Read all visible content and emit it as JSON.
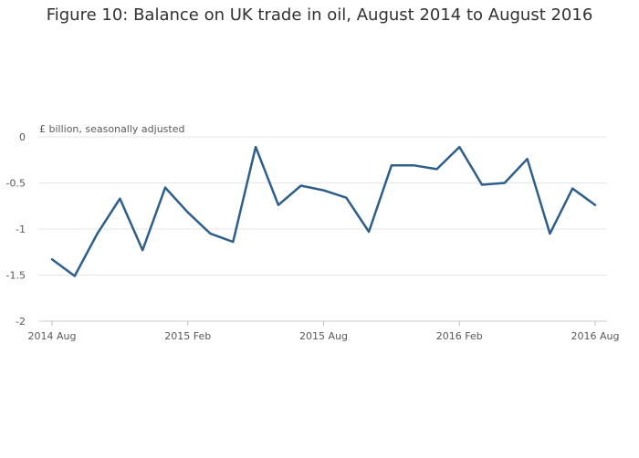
{
  "chart_data": {
    "type": "line",
    "title": "Figure 10: Balance on UK trade in oil, August 2014 to August 2016",
    "ylabel": "£ billion, seasonally adjusted",
    "xlabel": "",
    "ylim": [
      -2,
      0
    ],
    "yticks": [
      "0",
      "-0.5",
      "-1",
      "-1.5",
      "-2"
    ],
    "ytick_values": [
      0,
      -0.5,
      -1,
      -1.5,
      -2
    ],
    "xtick_labels": [
      "2014 Aug",
      "2015 Feb",
      "2015 Aug",
      "2016 Feb",
      "2016 Aug"
    ],
    "xtick_index": [
      0,
      6,
      12,
      18,
      24
    ],
    "grid": true,
    "line_color": "#2e5f8b",
    "x": [
      "2014 Aug",
      "2014 Sep",
      "2014 Oct",
      "2014 Nov",
      "2014 Dec",
      "2015 Jan",
      "2015 Feb",
      "2015 Mar",
      "2015 Apr",
      "2015 May",
      "2015 Jun",
      "2015 Jul",
      "2015 Aug",
      "2015 Sep",
      "2015 Oct",
      "2015 Nov",
      "2015 Dec",
      "2016 Jan",
      "2016 Feb",
      "2016 Mar",
      "2016 Apr",
      "2016 May",
      "2016 Jun",
      "2016 Jul",
      "2016 Aug"
    ],
    "values": [
      -1.33,
      -1.51,
      -1.05,
      -0.67,
      -1.23,
      -0.55,
      -0.82,
      -1.05,
      -1.14,
      -0.11,
      -0.74,
      -0.53,
      -0.58,
      -0.66,
      -1.03,
      -0.31,
      -0.31,
      -0.35,
      -0.11,
      -0.52,
      -0.5,
      -0.24,
      -1.05,
      -0.56,
      -0.74
    ]
  }
}
